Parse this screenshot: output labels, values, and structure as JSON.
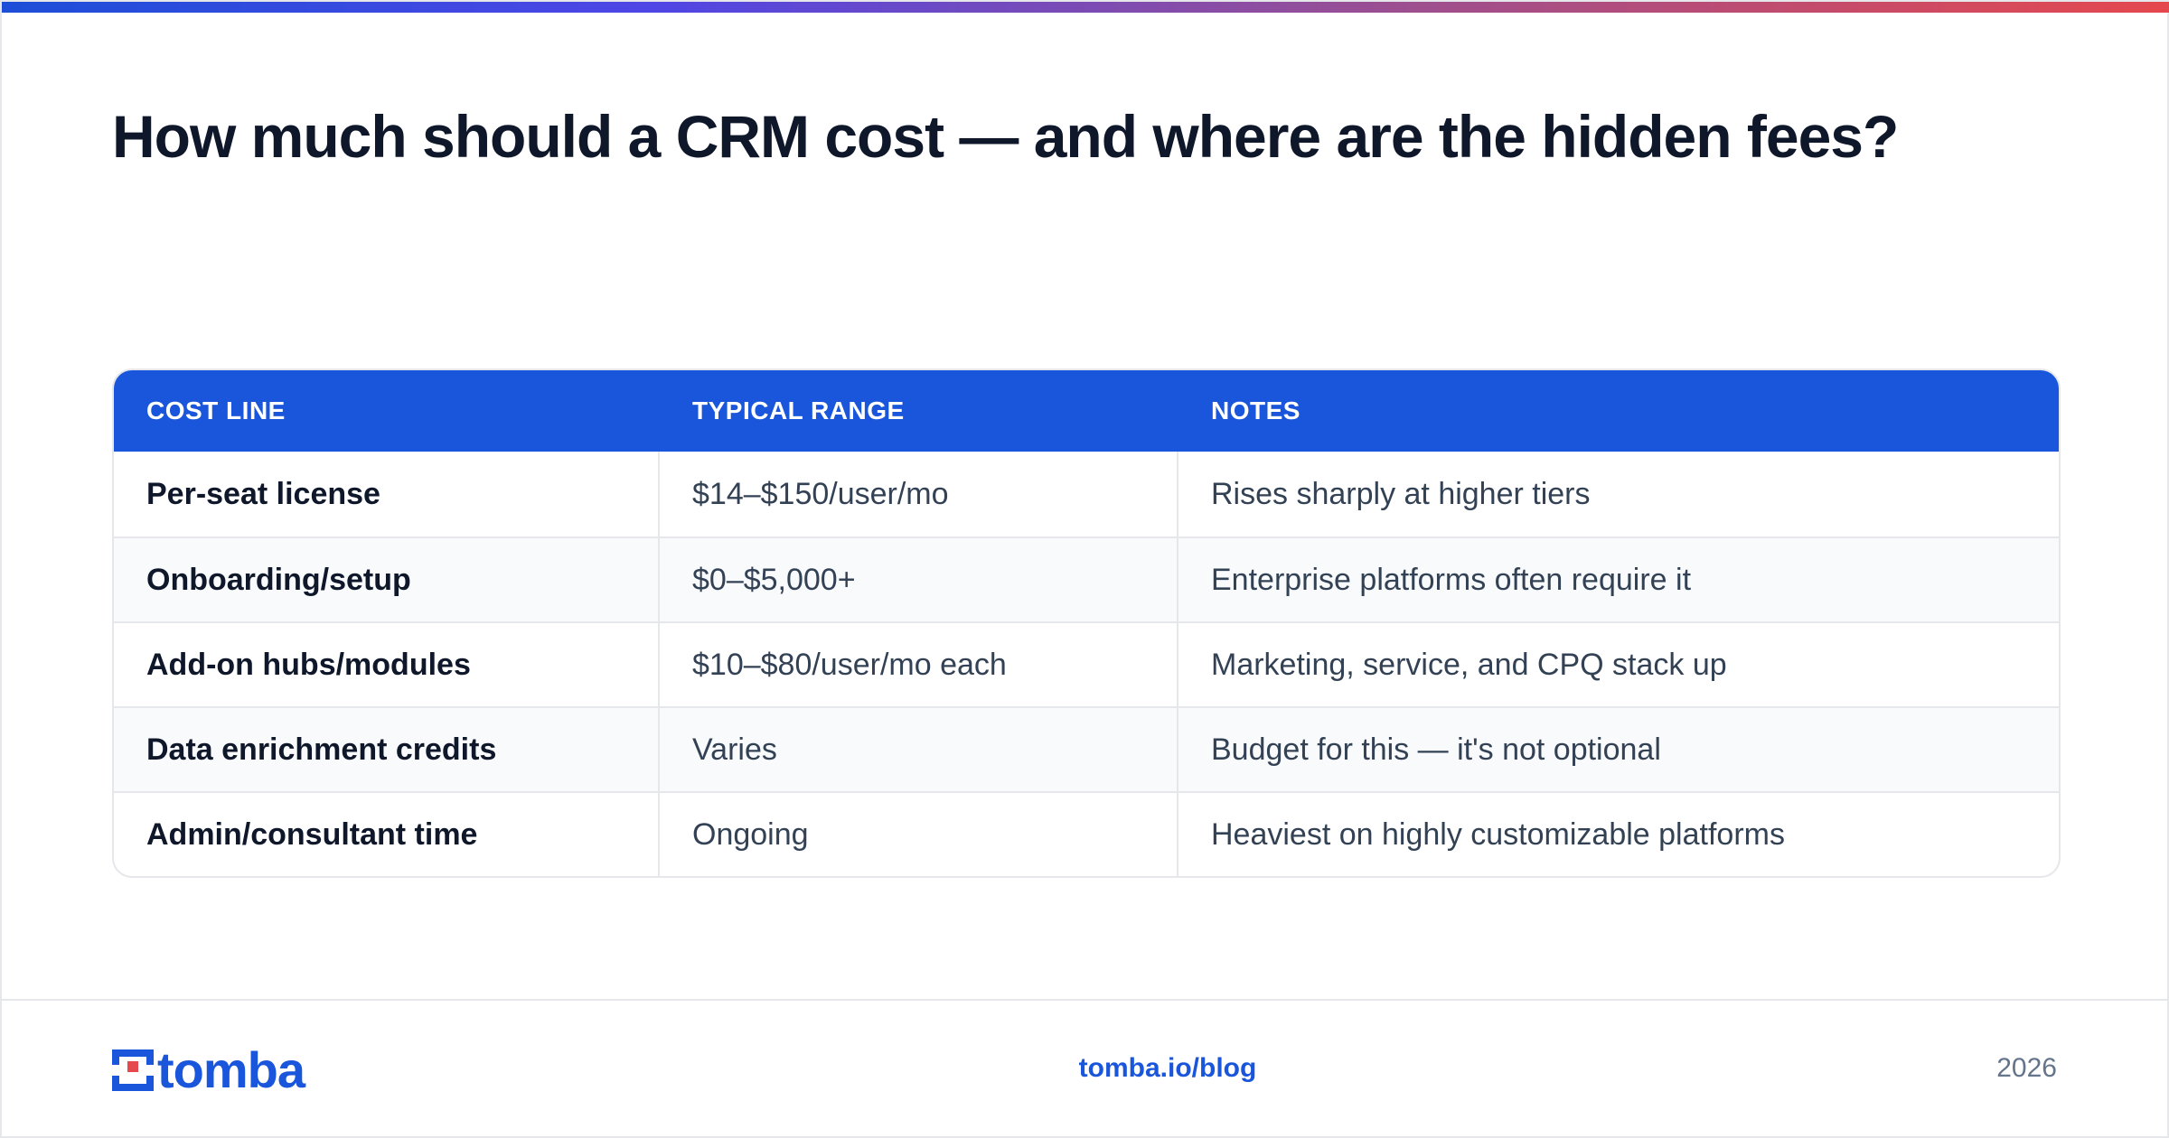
{
  "headline": "How much should a CRM cost — and where are the hidden fees?",
  "table": {
    "headers": [
      "COST LINE",
      "TYPICAL RANGE",
      "NOTES"
    ],
    "rows": [
      {
        "cost_line": "Per-seat license",
        "range": "$14–$150/user/mo",
        "notes": "Rises sharply at higher tiers"
      },
      {
        "cost_line": "Onboarding/setup",
        "range": "$0–$5,000+",
        "notes": "Enterprise platforms often require it"
      },
      {
        "cost_line": "Add-on hubs/modules",
        "range": "$10–$80/user/mo each",
        "notes": "Marketing, service, and CPQ stack up"
      },
      {
        "cost_line": "Data enrichment credits",
        "range": "Varies",
        "notes": "Budget for this — it's not optional"
      },
      {
        "cost_line": "Admin/consultant time",
        "range": "Ongoing",
        "notes": "Heaviest on highly customizable platforms"
      }
    ]
  },
  "footer": {
    "logo_text": "tomba",
    "logo_icon": "tomba-logo-icon",
    "url": "tomba.io/blog",
    "year": "2026"
  },
  "colors": {
    "brand": "#1a56db",
    "headline": "#0f172a",
    "accent_gradient": [
      "#1d4ed8",
      "#e5484d"
    ]
  }
}
